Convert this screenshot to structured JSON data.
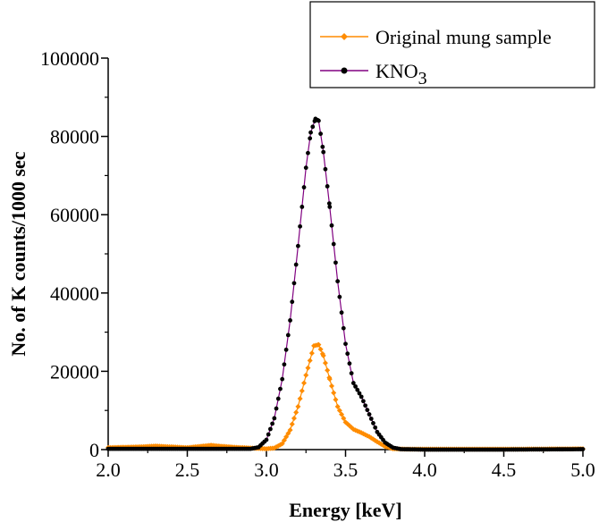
{
  "chart_data": {
    "type": "line",
    "xlabel": "Energy [keV]",
    "ylabel": "No. of K counts/1000 sec",
    "xlim": [
      2.0,
      5.0
    ],
    "ylim": [
      0,
      100000
    ],
    "x_ticks": [
      "2.0",
      "2.5",
      "3.0",
      "3.5",
      "4.0",
      "4.5",
      "5.0"
    ],
    "y_ticks": [
      "0",
      "20000",
      "40000",
      "60000",
      "80000",
      "100000"
    ],
    "grid": false,
    "legend_position": "top-right",
    "series": [
      {
        "name": "Original mung sample",
        "color": "#ff8c00",
        "marker": "diamond",
        "points": [
          [
            2.0,
            500
          ],
          [
            2.1,
            600
          ],
          [
            2.2,
            700
          ],
          [
            2.3,
            900
          ],
          [
            2.4,
            700
          ],
          [
            2.5,
            500
          ],
          [
            2.6,
            900
          ],
          [
            2.65,
            1100
          ],
          [
            2.7,
            900
          ],
          [
            2.8,
            600
          ],
          [
            2.9,
            400
          ],
          [
            3.0,
            200
          ],
          [
            3.05,
            400
          ],
          [
            3.1,
            1500
          ],
          [
            3.15,
            5000
          ],
          [
            3.2,
            11000
          ],
          [
            3.25,
            19000
          ],
          [
            3.3,
            26500
          ],
          [
            3.33,
            26800
          ],
          [
            3.36,
            24000
          ],
          [
            3.4,
            18000
          ],
          [
            3.45,
            11000
          ],
          [
            3.5,
            7000
          ],
          [
            3.55,
            5200
          ],
          [
            3.6,
            4300
          ],
          [
            3.65,
            3300
          ],
          [
            3.7,
            2000
          ],
          [
            3.75,
            800
          ],
          [
            3.8,
            200
          ],
          [
            3.9,
            100
          ],
          [
            4.0,
            100
          ],
          [
            4.5,
            100
          ],
          [
            5.0,
            200
          ]
        ]
      },
      {
        "name": "KNO",
        "name_sub": "3",
        "color": "#800080",
        "marker": "circle",
        "marker_color": "#000000",
        "points": [
          [
            2.0,
            200
          ],
          [
            2.5,
            200
          ],
          [
            2.9,
            200
          ],
          [
            2.95,
            600
          ],
          [
            3.0,
            2500
          ],
          [
            3.05,
            8000
          ],
          [
            3.1,
            18000
          ],
          [
            3.15,
            33000
          ],
          [
            3.2,
            52000
          ],
          [
            3.25,
            72000
          ],
          [
            3.28,
            81000
          ],
          [
            3.31,
            84500
          ],
          [
            3.33,
            84000
          ],
          [
            3.36,
            76000
          ],
          [
            3.4,
            62000
          ],
          [
            3.45,
            43000
          ],
          [
            3.5,
            27000
          ],
          [
            3.55,
            17000
          ],
          [
            3.6,
            13500
          ],
          [
            3.65,
            9000
          ],
          [
            3.7,
            4500
          ],
          [
            3.75,
            1800
          ],
          [
            3.8,
            500
          ],
          [
            3.85,
            100
          ],
          [
            4.0,
            0
          ],
          [
            4.5,
            0
          ],
          [
            5.0,
            100
          ]
        ]
      }
    ]
  }
}
